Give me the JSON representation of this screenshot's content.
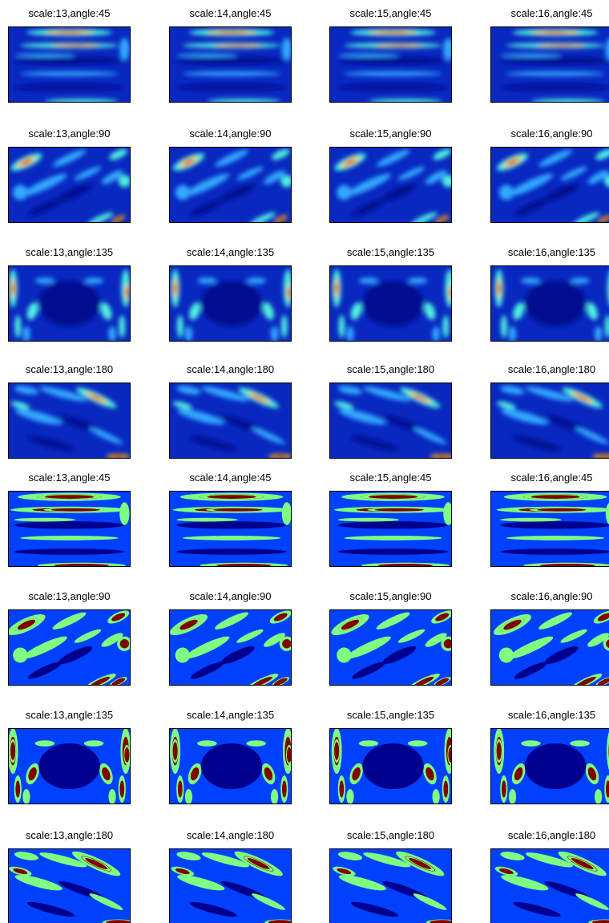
{
  "rows": [
    [
      "scale:13,angle:45",
      "scale:14,angle:45",
      "scale:15,angle:45",
      "scale:16,angle:45"
    ],
    [
      "scale:13,angle:90",
      "scale:14,angle:90",
      "scale:15,angle:90",
      "scale:16,angle:90"
    ],
    [
      "scale:13,angle:135",
      "scale:14,angle:135",
      "scale:15,angle:135",
      "scale:16,angle:135"
    ],
    [
      "scale:13,angle:180",
      "scale:14,angle:180",
      "scale:15,angle:180",
      "scale:16,angle:180"
    ],
    [
      "scale:13,angle:45",
      "scale:14,angle:45",
      "scale:15,angle:45",
      "scale:16,angle:45"
    ],
    [
      "scale:13,angle:90",
      "scale:14,angle:90",
      "scale:15,angle:90",
      "scale:16,angle:90"
    ],
    [
      "scale:13,angle:135",
      "scale:14,angle:135",
      "scale:15,angle:135",
      "scale:16,angle:135"
    ],
    [
      "scale:13,angle:180",
      "scale:14,angle:180",
      "scale:15,angle:180",
      "scale:16,angle:180"
    ]
  ]
}
